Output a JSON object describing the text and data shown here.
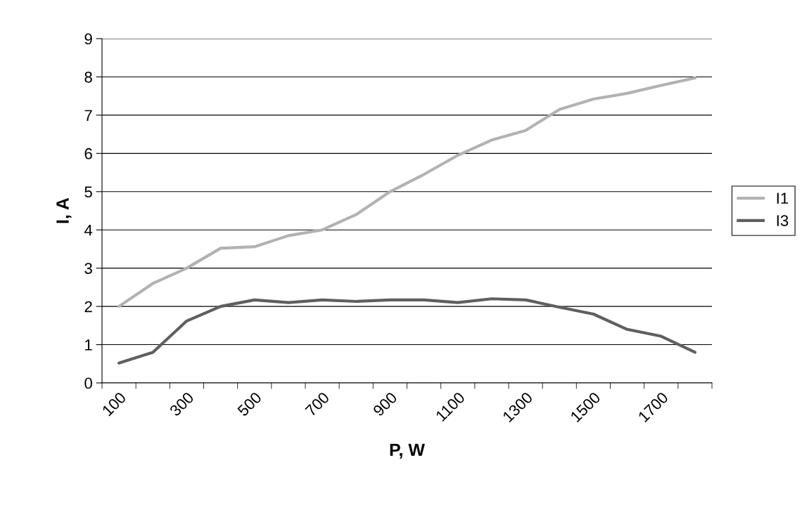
{
  "chart_data": {
    "type": "line",
    "xlabel": "P, W",
    "ylabel": "I, A",
    "categories": [
      "100",
      null,
      "300",
      null,
      "500",
      null,
      "700",
      null,
      "900",
      null,
      "1100",
      null,
      "1300",
      null,
      "1500",
      null,
      "1700",
      null
    ],
    "series": [
      {
        "name": "I1",
        "color": "#b2b2b2",
        "values": [
          2.0,
          2.6,
          3.0,
          3.52,
          3.56,
          3.85,
          4.0,
          4.4,
          5.0,
          5.45,
          5.95,
          6.35,
          6.6,
          7.15,
          7.42,
          7.57,
          7.78,
          7.97
        ]
      },
      {
        "name": "I3",
        "color": "#5f5f5f",
        "values": [
          0.52,
          0.8,
          1.62,
          2.0,
          2.17,
          2.1,
          2.17,
          2.13,
          2.17,
          2.17,
          2.1,
          2.2,
          2.17,
          1.98,
          1.8,
          1.4,
          1.22,
          0.8
        ]
      }
    ],
    "ylim": [
      0,
      9
    ],
    "yticks": [
      0,
      1,
      2,
      3,
      4,
      5,
      6,
      7,
      8,
      9
    ],
    "grid": "y",
    "legend": "right",
    "marker": "none",
    "line_style": "solid"
  }
}
